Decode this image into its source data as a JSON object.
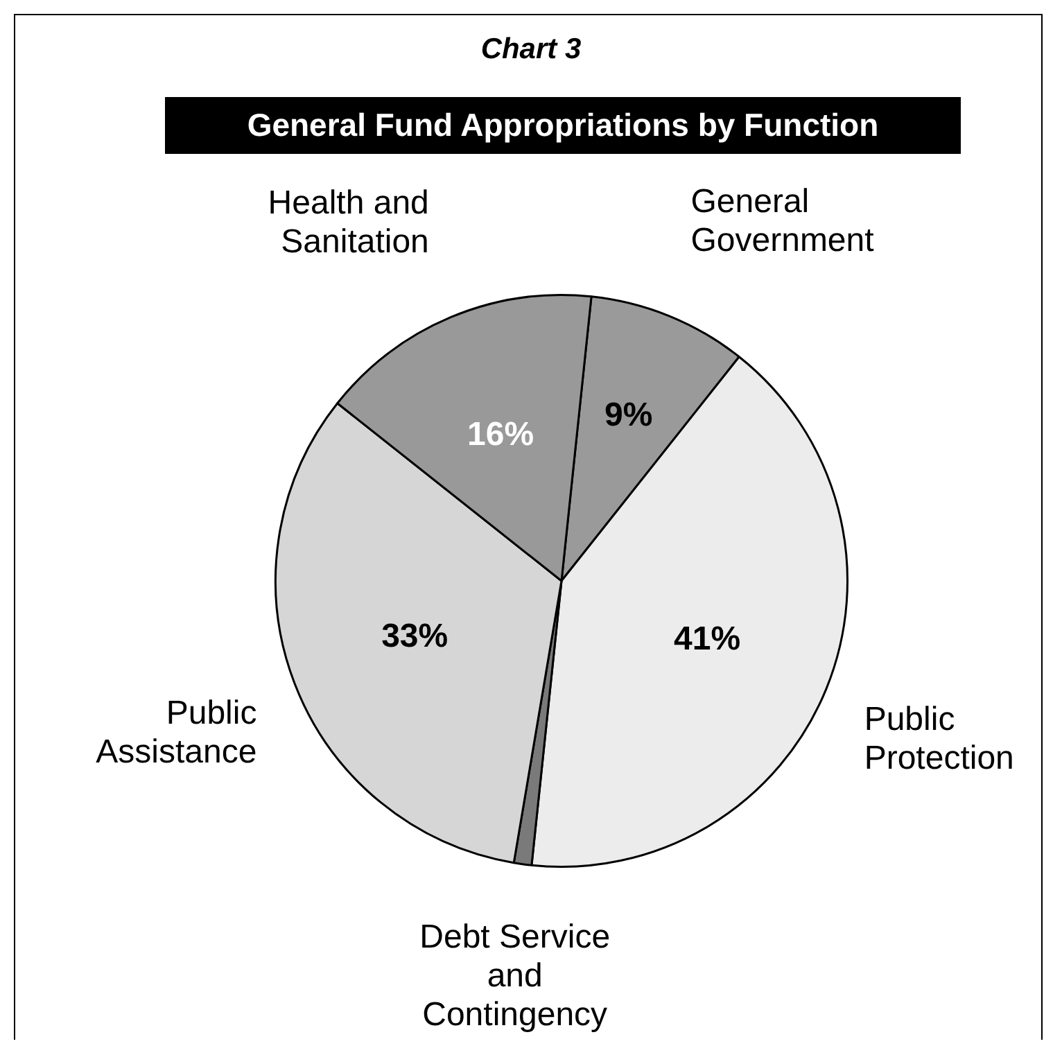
{
  "chart_data": {
    "type": "pie",
    "title": "Chart 3",
    "subtitle": "General Fund Appropriations by Function",
    "categories": [
      "General Government",
      "Public Protection",
      "Debt Service and Contingency",
      "Public Assistance",
      "Health and Sanitation"
    ],
    "values": [
      9,
      41,
      1,
      33,
      16
    ],
    "colors": [
      "#9a9a9a",
      "#ececec",
      "#7a7a7a",
      "#d6d6d6",
      "#999999"
    ],
    "value_labels": [
      "9%",
      "41%",
      null,
      "33%",
      "16%"
    ],
    "legend": false
  }
}
